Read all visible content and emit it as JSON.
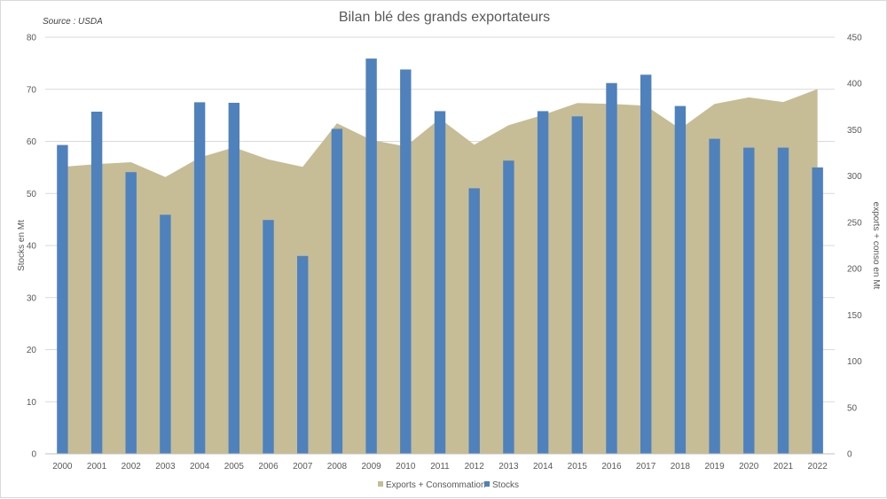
{
  "chart_data": {
    "type": "bar+area",
    "title": "Bilan blé des grands exportateurs",
    "source": "Source : USDA",
    "categories": [
      "2000",
      "2001",
      "2002",
      "2003",
      "2004",
      "2005",
      "2006",
      "2007",
      "2008",
      "2009",
      "2010",
      "2011",
      "2012",
      "2013",
      "2014",
      "2015",
      "2016",
      "2017",
      "2018",
      "2019",
      "2020",
      "2021",
      "2022"
    ],
    "series": [
      {
        "name": "Exports + Consommation",
        "type": "area",
        "axis": "right",
        "color": "#c6bd96",
        "values": [
          310,
          313,
          315,
          299,
          320,
          331,
          318,
          310,
          357,
          339,
          332,
          362,
          334,
          355,
          366,
          379,
          378,
          376,
          351,
          378,
          385,
          380,
          394
        ]
      },
      {
        "name": "Stocks",
        "type": "bar",
        "axis": "left",
        "color": "#4f81bd",
        "values": [
          59.3,
          65.7,
          54.1,
          45.9,
          67.5,
          67.4,
          44.9,
          38.0,
          62.4,
          75.9,
          73.8,
          65.8,
          51.0,
          56.3,
          65.8,
          64.8,
          71.2,
          72.8,
          66.8,
          60.5,
          58.8,
          58.8,
          55.0
        ]
      }
    ],
    "y_left": {
      "label": "Stocks en Mt",
      "min": 0,
      "max": 80,
      "ticks": [
        0,
        10,
        20,
        30,
        40,
        50,
        60,
        70,
        80
      ]
    },
    "y_right": {
      "label": "exports + conso en Mt",
      "min": 0,
      "max": 450,
      "ticks": [
        0,
        50,
        100,
        150,
        200,
        250,
        300,
        350,
        400,
        450
      ]
    },
    "grid": true,
    "legend_position": "bottom"
  }
}
